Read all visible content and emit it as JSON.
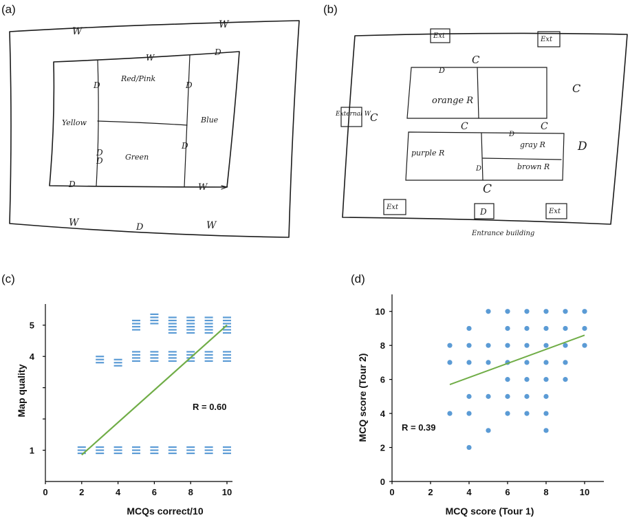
{
  "panels": {
    "a": "(a)",
    "b": "(b)",
    "c": "(c)",
    "d": "(d)"
  },
  "sketch_a": {
    "labels": [
      "W",
      "W",
      "W",
      "D",
      "D",
      "D",
      "D",
      "D",
      "D",
      "Red/Pink",
      "Yellow",
      "Blue",
      "Green",
      "D",
      "W",
      "W",
      "D",
      "W"
    ]
  },
  "sketch_b": {
    "labels": [
      "Ext",
      "Ext",
      "C",
      "D",
      "C",
      "orange R",
      "External W",
      "C",
      "C",
      "C",
      "D",
      "purple R",
      "gray R",
      "D",
      "brown R",
      "D",
      "C",
      "Ext",
      "D",
      "Ext",
      "Entrance building"
    ]
  },
  "chart_data": [
    {
      "type": "scatter",
      "xlabel": "MCQs correct/10",
      "ylabel": "Map quality",
      "xlim": [
        0,
        10
      ],
      "ylim": [
        0,
        5
      ],
      "xticks": [
        0,
        2,
        4,
        6,
        8,
        10
      ],
      "yticks": [
        1,
        2,
        3,
        4,
        5
      ],
      "ytick_labels_visible": [
        "1",
        "4",
        "5"
      ],
      "marker": "horizontal-dash",
      "color": "#5b9bd5",
      "points": [
        {
          "x": 2,
          "y": 1
        },
        {
          "x": 3,
          "y": 1
        },
        {
          "x": 3,
          "y": 3.9
        },
        {
          "x": 4,
          "y": 1
        },
        {
          "x": 4,
          "y": 3.8
        },
        {
          "x": 5,
          "y": 1
        },
        {
          "x": 5,
          "y": 4
        },
        {
          "x": 5,
          "y": 5
        },
        {
          "x": 6,
          "y": 1
        },
        {
          "x": 6,
          "y": 4
        },
        {
          "x": 6,
          "y": 5.2
        },
        {
          "x": 7,
          "y": 1
        },
        {
          "x": 7,
          "y": 4
        },
        {
          "x": 7,
          "y": 5
        },
        {
          "x": 8,
          "y": 1
        },
        {
          "x": 8,
          "y": 4
        },
        {
          "x": 8,
          "y": 5
        },
        {
          "x": 9,
          "y": 1
        },
        {
          "x": 9,
          "y": 4
        },
        {
          "x": 9,
          "y": 5
        },
        {
          "x": 10,
          "y": 1
        },
        {
          "x": 10,
          "y": 4
        },
        {
          "x": 10,
          "y": 5
        }
      ],
      "trendline": {
        "color": "#70ad47",
        "from": [
          2,
          0.85
        ],
        "to": [
          10,
          5
        ]
      },
      "annotation": "R = 0.60"
    },
    {
      "type": "scatter",
      "xlabel": "MCQ score (Tour 1)",
      "ylabel": "MCQ score (Tour 2)",
      "xlim": [
        0,
        11
      ],
      "ylim": [
        0,
        11
      ],
      "xticks": [
        0,
        2,
        4,
        6,
        8,
        10
      ],
      "yticks": [
        0,
        2,
        4,
        6,
        8,
        10
      ],
      "color": "#5b9bd5",
      "points": [
        {
          "x": 3,
          "y": 8
        },
        {
          "x": 3,
          "y": 7
        },
        {
          "x": 3,
          "y": 4
        },
        {
          "x": 4,
          "y": 9
        },
        {
          "x": 4,
          "y": 8
        },
        {
          "x": 4,
          "y": 7
        },
        {
          "x": 4,
          "y": 5
        },
        {
          "x": 4,
          "y": 4
        },
        {
          "x": 4,
          "y": 2
        },
        {
          "x": 5,
          "y": 10
        },
        {
          "x": 5,
          "y": 8
        },
        {
          "x": 5,
          "y": 7
        },
        {
          "x": 5,
          "y": 5
        },
        {
          "x": 5,
          "y": 3
        },
        {
          "x": 6,
          "y": 10
        },
        {
          "x": 6,
          "y": 9
        },
        {
          "x": 6,
          "y": 8
        },
        {
          "x": 6,
          "y": 7
        },
        {
          "x": 6,
          "y": 6
        },
        {
          "x": 6,
          "y": 5
        },
        {
          "x": 6,
          "y": 4
        },
        {
          "x": 7,
          "y": 10
        },
        {
          "x": 7,
          "y": 9
        },
        {
          "x": 7,
          "y": 8
        },
        {
          "x": 7,
          "y": 7
        },
        {
          "x": 7,
          "y": 6
        },
        {
          "x": 7,
          "y": 5
        },
        {
          "x": 7,
          "y": 4
        },
        {
          "x": 8,
          "y": 10
        },
        {
          "x": 8,
          "y": 9
        },
        {
          "x": 8,
          "y": 8
        },
        {
          "x": 8,
          "y": 7
        },
        {
          "x": 8,
          "y": 6
        },
        {
          "x": 8,
          "y": 5
        },
        {
          "x": 8,
          "y": 4
        },
        {
          "x": 8,
          "y": 3
        },
        {
          "x": 9,
          "y": 10
        },
        {
          "x": 9,
          "y": 9
        },
        {
          "x": 9,
          "y": 8
        },
        {
          "x": 9,
          "y": 7
        },
        {
          "x": 9,
          "y": 6
        },
        {
          "x": 10,
          "y": 10
        },
        {
          "x": 10,
          "y": 9
        },
        {
          "x": 10,
          "y": 8
        }
      ],
      "trendline": {
        "color": "#70ad47",
        "from": [
          3,
          5.7
        ],
        "to": [
          10,
          8.6
        ]
      },
      "annotation": "R = 0.39"
    }
  ]
}
